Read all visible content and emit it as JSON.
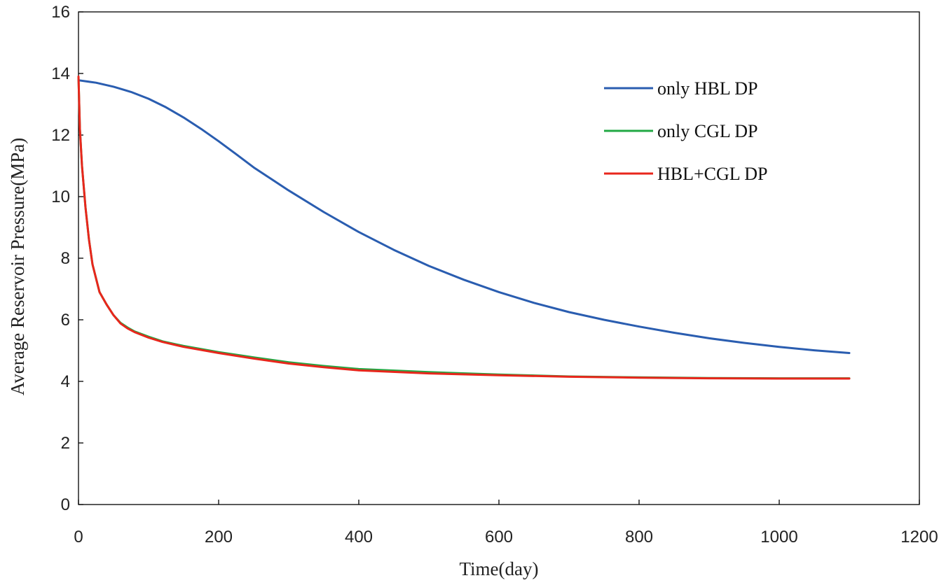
{
  "chart_data": {
    "type": "line",
    "title": "",
    "xlabel": "Time(day)",
    "ylabel": "Average Reservoir  Pressure(MPa)",
    "xlim": [
      0,
      1200
    ],
    "ylim": [
      0,
      16
    ],
    "xticks": [
      0,
      200,
      400,
      600,
      800,
      1000,
      1200
    ],
    "yticks": [
      0,
      2,
      4,
      6,
      8,
      10,
      12,
      14,
      16
    ],
    "grid": false,
    "legend_position": "top-right",
    "series": [
      {
        "name": "only HBL DP",
        "color": "#2a5db0",
        "x": [
          0,
          25,
          50,
          75,
          100,
          125,
          150,
          175,
          200,
          225,
          250,
          300,
          350,
          400,
          450,
          500,
          550,
          600,
          650,
          700,
          750,
          800,
          850,
          900,
          950,
          1000,
          1050,
          1100
        ],
        "y": [
          13.78,
          13.7,
          13.57,
          13.4,
          13.18,
          12.9,
          12.57,
          12.2,
          11.8,
          11.38,
          10.95,
          10.2,
          9.5,
          8.85,
          8.27,
          7.75,
          7.3,
          6.9,
          6.55,
          6.25,
          6.0,
          5.78,
          5.58,
          5.4,
          5.25,
          5.12,
          5.01,
          4.92
        ]
      },
      {
        "name": "only CGL DP",
        "color": "#22a844",
        "x": [
          0,
          2,
          5,
          10,
          15,
          20,
          30,
          40,
          50,
          60,
          70,
          80,
          100,
          120,
          150,
          200,
          250,
          300,
          350,
          400,
          500,
          600,
          700,
          800,
          900,
          1000,
          1100
        ],
        "y": [
          13.88,
          12.2,
          11.0,
          9.65,
          8.6,
          7.8,
          6.9,
          6.5,
          6.15,
          5.9,
          5.75,
          5.62,
          5.45,
          5.3,
          5.15,
          4.95,
          4.78,
          4.62,
          4.5,
          4.4,
          4.3,
          4.22,
          4.16,
          4.13,
          4.11,
          4.1,
          4.1
        ]
      },
      {
        "name": "HBL+CGL DP",
        "color": "#e8261c",
        "x": [
          0,
          2,
          5,
          10,
          15,
          20,
          30,
          40,
          50,
          60,
          70,
          80,
          100,
          120,
          150,
          200,
          250,
          300,
          350,
          400,
          500,
          600,
          700,
          800,
          900,
          1000,
          1100
        ],
        "y": [
          13.9,
          12.2,
          11.0,
          9.65,
          8.6,
          7.8,
          6.9,
          6.5,
          6.15,
          5.88,
          5.72,
          5.6,
          5.42,
          5.28,
          5.12,
          4.92,
          4.74,
          4.58,
          4.46,
          4.36,
          4.26,
          4.2,
          4.15,
          4.12,
          4.1,
          4.09,
          4.09
        ]
      }
    ]
  }
}
